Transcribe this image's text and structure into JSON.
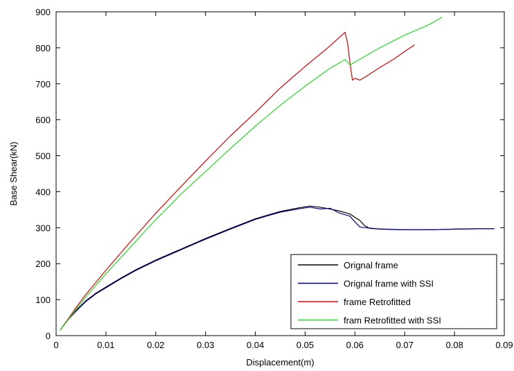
{
  "chart_data": {
    "type": "line",
    "title": "",
    "xlabel": "Displacement(m)",
    "ylabel": "Base Shear(kN)",
    "xlim": [
      0,
      0.09
    ],
    "ylim": [
      0,
      900
    ],
    "x_ticks": [
      0,
      0.01,
      0.02,
      0.03,
      0.04,
      0.05,
      0.06,
      0.07,
      0.08,
      0.09
    ],
    "x_tick_labels": [
      "0",
      "0.01",
      "0.02",
      "0.03",
      "0.04",
      "0.05",
      "0.06",
      "0.07",
      "0.08",
      "0.09"
    ],
    "y_ticks": [
      0,
      100,
      200,
      300,
      400,
      500,
      600,
      700,
      800,
      900
    ],
    "y_tick_labels": [
      "0",
      "100",
      "200",
      "300",
      "400",
      "500",
      "600",
      "700",
      "800",
      "900"
    ],
    "grid": false,
    "legend_position": "bottom-right",
    "series": [
      {
        "name": "Orignal frame",
        "color": "#000000",
        "x": [
          0.0008,
          0.002,
          0.004,
          0.006,
          0.008,
          0.01,
          0.013,
          0.016,
          0.02,
          0.025,
          0.03,
          0.035,
          0.04,
          0.045,
          0.049,
          0.051,
          0.053,
          0.055,
          0.057,
          0.059,
          0.061,
          0.062,
          0.063,
          0.064,
          0.066,
          0.07,
          0.075,
          0.08,
          0.085,
          0.088
        ],
        "y": [
          15,
          38,
          70,
          97,
          118,
          135,
          160,
          183,
          210,
          240,
          270,
          298,
          325,
          345,
          356,
          360,
          357,
          352,
          346,
          338,
          320,
          305,
          298,
          297,
          296,
          294,
          294,
          296,
          297,
          297
        ]
      },
      {
        "name": "Orignal frame with SSI",
        "color": "#00008b",
        "x": [
          0.0008,
          0.002,
          0.004,
          0.006,
          0.008,
          0.01,
          0.013,
          0.016,
          0.02,
          0.025,
          0.03,
          0.035,
          0.04,
          0.045,
          0.049,
          0.051,
          0.053,
          0.055,
          0.057,
          0.059,
          0.06,
          0.061,
          0.062,
          0.063,
          0.065,
          0.07,
          0.075,
          0.08,
          0.085,
          0.088
        ],
        "y": [
          15,
          38,
          68,
          95,
          116,
          133,
          158,
          181,
          208,
          238,
          268,
          296,
          323,
          343,
          353,
          357,
          352,
          354,
          340,
          332,
          316,
          302,
          300,
          299,
          296,
          294,
          294,
          296,
          297,
          297
        ]
      },
      {
        "name": "frame Retrofitted",
        "color": "#e00000",
        "x": [
          0.0008,
          0.002,
          0.004,
          0.006,
          0.008,
          0.01,
          0.015,
          0.02,
          0.025,
          0.03,
          0.035,
          0.04,
          0.045,
          0.05,
          0.055,
          0.058,
          0.0585,
          0.059,
          0.0595,
          0.06,
          0.061,
          0.062,
          0.065,
          0.068,
          0.07,
          0.072
        ],
        "y": [
          15,
          38,
          78,
          115,
          148,
          182,
          262,
          340,
          413,
          485,
          555,
          620,
          688,
          748,
          805,
          843,
          815,
          760,
          710,
          715,
          710,
          718,
          745,
          770,
          790,
          808
        ]
      },
      {
        "name": "fram Retrofitted with SSI",
        "color": "#22dd22",
        "x": [
          0.0008,
          0.002,
          0.004,
          0.006,
          0.008,
          0.01,
          0.015,
          0.02,
          0.025,
          0.03,
          0.035,
          0.04,
          0.045,
          0.05,
          0.055,
          0.058,
          0.0585,
          0.059,
          0.06,
          0.065,
          0.07,
          0.075,
          0.0775
        ],
        "y": [
          15,
          36,
          73,
          108,
          140,
          172,
          247,
          322,
          392,
          456,
          520,
          582,
          640,
          693,
          743,
          767,
          760,
          752,
          760,
          800,
          835,
          865,
          885
        ]
      }
    ]
  }
}
